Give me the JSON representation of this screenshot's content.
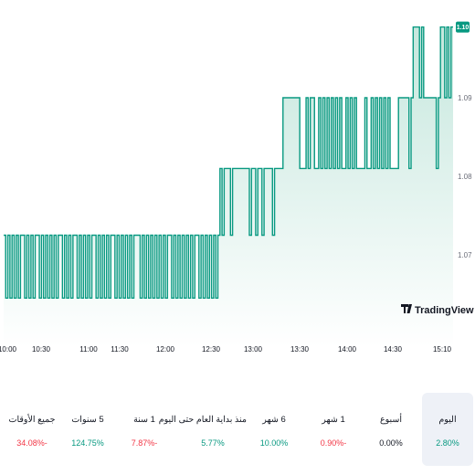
{
  "chart_data": {
    "type": "area",
    "ylim": [
      1.063,
      1.102
    ],
    "y_ticks": [
      "1.07",
      "1.08",
      "1.09"
    ],
    "x_ticks": [
      "10:00",
      "10:30",
      "11:00",
      "11:30",
      "12:00",
      "12:30",
      "13:00",
      "13:30",
      "14:00",
      "14:30",
      "15:10"
    ],
    "series": [
      {
        "x_start": "10:00",
        "x_end": "15:10",
        "values": [
          1.0725,
          1.0645,
          1.0725,
          1.0645,
          1.0725,
          1.0645,
          1.0725,
          1.0645,
          1.0725,
          1.0725,
          1.0645,
          1.0725,
          1.0645,
          1.0725,
          1.0645,
          1.0725,
          1.0725,
          1.0645,
          1.0725,
          1.0645,
          1.0725,
          1.0645,
          1.0725,
          1.0645,
          1.0725,
          1.0645,
          1.0725,
          1.0725,
          1.0645,
          1.0725,
          1.0645,
          1.0725,
          1.0645,
          1.0725,
          1.0725,
          1.0645,
          1.0725,
          1.0645,
          1.0725,
          1.0645,
          1.0725,
          1.0645,
          1.0725,
          1.0725,
          1.0645,
          1.0725,
          1.0645,
          1.0725,
          1.0645,
          1.0725,
          1.0645,
          1.0725,
          1.0725,
          1.0645,
          1.0725,
          1.0645,
          1.0725,
          1.0645,
          1.0725,
          1.0645,
          1.0725,
          1.0645,
          1.0725,
          1.0725,
          1.0725,
          1.0645,
          1.0725,
          1.0645,
          1.0725,
          1.0645,
          1.0725,
          1.0645,
          1.0725,
          1.0645,
          1.0725,
          1.0645,
          1.0725,
          1.0645,
          1.0725,
          1.0725,
          1.0645,
          1.0725,
          1.0645,
          1.0725,
          1.0645,
          1.0725,
          1.0645,
          1.0725,
          1.0645,
          1.0725,
          1.0645,
          1.0725,
          1.0725,
          1.0645,
          1.0725,
          1.0645,
          1.0725,
          1.0645,
          1.0725,
          1.0645,
          1.0725,
          1.0645,
          1.0725,
          1.081,
          1.0725,
          1.081,
          1.081,
          1.081,
          1.0725,
          1.081,
          1.081,
          1.081,
          1.081,
          1.081,
          1.081,
          1.081,
          1.081,
          1.0725,
          1.081,
          1.081,
          1.0725,
          1.081,
          1.081,
          1.0725,
          1.081,
          1.081,
          1.081,
          1.081,
          1.0725,
          1.081,
          1.081,
          1.081,
          1.081,
          1.09,
          1.09,
          1.09,
          1.09,
          1.09,
          1.09,
          1.09,
          1.09,
          1.081,
          1.081,
          1.081,
          1.09,
          1.081,
          1.09,
          1.09,
          1.081,
          1.081,
          1.09,
          1.081,
          1.09,
          1.081,
          1.09,
          1.081,
          1.09,
          1.081,
          1.09,
          1.081,
          1.09,
          1.081,
          1.081,
          1.09,
          1.081,
          1.09,
          1.081,
          1.09,
          1.081,
          1.081,
          1.081,
          1.081,
          1.09,
          1.081,
          1.081,
          1.09,
          1.081,
          1.09,
          1.081,
          1.09,
          1.081,
          1.09,
          1.081,
          1.09,
          1.081,
          1.081,
          1.081,
          1.081,
          1.09,
          1.09,
          1.09,
          1.09,
          1.09,
          1.081,
          1.09,
          1.099,
          1.099,
          1.099,
          1.09,
          1.099,
          1.09,
          1.09,
          1.09,
          1.09,
          1.09,
          1.09,
          1.081,
          1.09,
          1.099,
          1.099,
          1.09,
          1.099,
          1.09,
          1.099,
          1.099
        ],
        "last_label": "1.10"
      }
    ],
    "colors": {
      "line": "#089981",
      "fill_top": "#c5e7dd",
      "fill_bottom": "#ffffff",
      "text": "#131722",
      "muted": "#6a6d78"
    }
  },
  "watermark": {
    "text": "TradingView"
  },
  "periods": [
    {
      "label": "جميع الأوقات",
      "value": "34.08%-",
      "trend": "down",
      "active": false
    },
    {
      "label": "5 سنوات",
      "value": "124.75%",
      "trend": "up",
      "active": false
    },
    {
      "label": "1 سنة",
      "value": "7.87%-",
      "trend": "down",
      "active": false
    },
    {
      "label": "منذ بداية العام حتى اليوم",
      "value": "5.77%",
      "trend": "up",
      "active": false
    },
    {
      "label": "6 شهر",
      "value": "10.00%",
      "trend": "up",
      "active": false
    },
    {
      "label": "1 شهر",
      "value": "0.90%-",
      "trend": "down",
      "active": false
    },
    {
      "label": "أسبوع",
      "value": "0.00%",
      "trend": "flat",
      "active": false
    },
    {
      "label": "اليوم",
      "value": "2.80%",
      "trend": "up",
      "active": true
    }
  ]
}
